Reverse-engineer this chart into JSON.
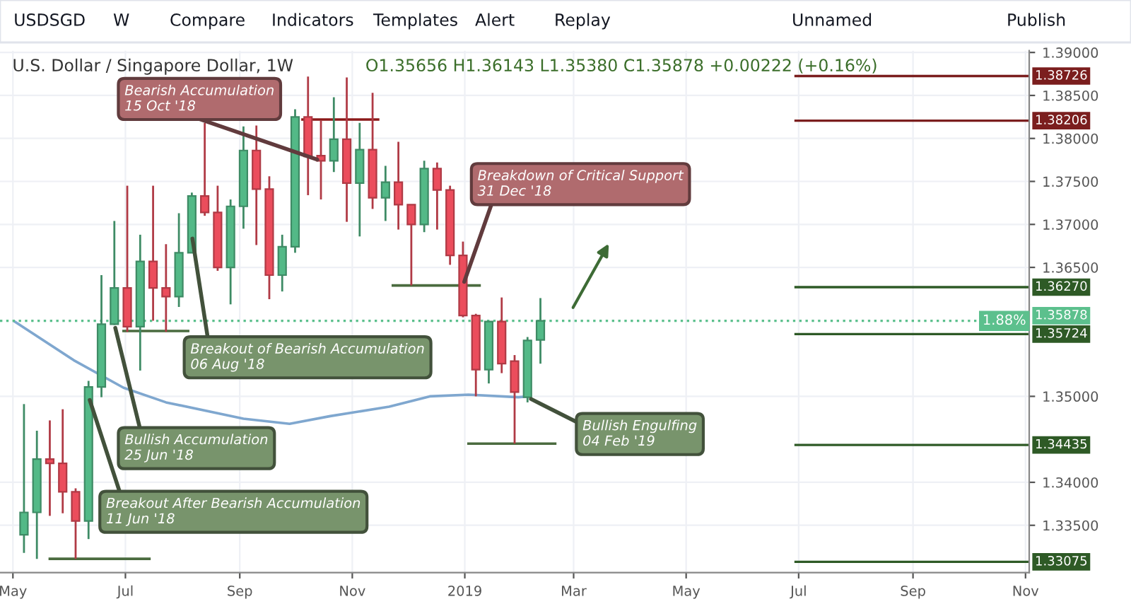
{
  "chart_data": {
    "type": "candlestick",
    "title": "U.S. Dollar / Singapore Dollar, 1W",
    "subtitle": "O1.35656 H1.36143 L1.35380 C1.35878 +0.00222 (+0.16%)",
    "x": [
      "2018-05-07",
      "2018-05-14",
      "2018-05-21",
      "2018-05-28",
      "2018-06-04",
      "2018-06-11",
      "2018-06-18",
      "2018-06-25",
      "2018-07-02",
      "2018-07-09",
      "2018-07-16",
      "2018-07-23",
      "2018-07-30",
      "2018-08-06",
      "2018-08-13",
      "2018-08-20",
      "2018-08-27",
      "2018-09-03",
      "2018-09-10",
      "2018-09-17",
      "2018-09-24",
      "2018-10-01",
      "2018-10-08",
      "2018-10-15",
      "2018-10-22",
      "2018-10-29",
      "2018-11-05",
      "2018-11-12",
      "2018-11-19",
      "2018-11-26",
      "2018-12-03",
      "2018-12-10",
      "2018-12-17",
      "2018-12-24",
      "2018-12-31",
      "2019-01-07",
      "2019-01-14",
      "2019-01-21",
      "2019-01-28",
      "2019-02-04",
      "2019-02-11"
    ],
    "ohlc": [
      [
        1.3339,
        1.3491,
        1.3318,
        1.3365
      ],
      [
        1.3365,
        1.346,
        1.3311,
        1.3427
      ],
      [
        1.3427,
        1.3472,
        1.3361,
        1.3422
      ],
      [
        1.3422,
        1.3485,
        1.3364,
        1.3389
      ],
      [
        1.3389,
        1.3393,
        1.3311,
        1.3355
      ],
      [
        1.3355,
        1.3518,
        1.3334,
        1.3511
      ],
      [
        1.3511,
        1.3641,
        1.3499,
        1.3584
      ],
      [
        1.3584,
        1.3704,
        1.3583,
        1.3626
      ],
      [
        1.3626,
        1.3745,
        1.3575,
        1.3581
      ],
      [
        1.3581,
        1.3688,
        1.353,
        1.3657
      ],
      [
        1.3657,
        1.3745,
        1.3588,
        1.3626
      ],
      [
        1.3626,
        1.3677,
        1.3575,
        1.3616
      ],
      [
        1.3616,
        1.3713,
        1.3604,
        1.3667
      ],
      [
        1.3667,
        1.3737,
        1.3667,
        1.3733
      ],
      [
        1.3733,
        1.3818,
        1.371,
        1.3714
      ],
      [
        1.3714,
        1.3745,
        1.3646,
        1.365
      ],
      [
        1.365,
        1.3729,
        1.3607,
        1.3721
      ],
      [
        1.3721,
        1.3814,
        1.3695,
        1.3786
      ],
      [
        1.3786,
        1.3815,
        1.3676,
        1.3741
      ],
      [
        1.3741,
        1.3756,
        1.3613,
        1.3641
      ],
      [
        1.3641,
        1.3688,
        1.3622,
        1.3674
      ],
      [
        1.3674,
        1.3834,
        1.3667,
        1.3825
      ],
      [
        1.3825,
        1.3872,
        1.3734,
        1.3779
      ],
      [
        1.378,
        1.3821,
        1.3729,
        1.3774
      ],
      [
        1.3774,
        1.3848,
        1.3761,
        1.3799
      ],
      [
        1.3799,
        1.3871,
        1.3703,
        1.3748
      ],
      [
        1.3748,
        1.3818,
        1.3686,
        1.3787
      ],
      [
        1.3787,
        1.3853,
        1.3718,
        1.3731
      ],
      [
        1.3731,
        1.3768,
        1.3704,
        1.3749
      ],
      [
        1.3749,
        1.3796,
        1.3694,
        1.3723
      ],
      [
        1.3723,
        1.3723,
        1.3629,
        1.37
      ],
      [
        1.37,
        1.3774,
        1.3691,
        1.3765
      ],
      [
        1.3765,
        1.3772,
        1.3694,
        1.374
      ],
      [
        1.374,
        1.3745,
        1.3653,
        1.3664
      ],
      [
        1.3664,
        1.368,
        1.3592,
        1.3594
      ],
      [
        1.3594,
        1.3596,
        1.35,
        1.3531
      ],
      [
        1.3531,
        1.3587,
        1.3515,
        1.3587
      ],
      [
        1.3587,
        1.3615,
        1.3527,
        1.3538
      ],
      [
        1.3541,
        1.3548,
        1.3445,
        1.3505
      ],
      [
        1.3499,
        1.3569,
        1.3493,
        1.3565
      ],
      [
        1.35656,
        1.36143,
        1.3538,
        1.35878
      ]
    ],
    "colors": [
      "#53b987",
      "#53b987",
      "#eb4d5c",
      "#eb4d5c",
      "#eb4d5c",
      "#53b987",
      "#53b987",
      "#53b987",
      "#eb4d5c",
      "#53b987",
      "#eb4d5c",
      "#eb4d5c",
      "#53b987",
      "#53b987",
      "#eb4d5c",
      "#eb4d5c",
      "#53b987",
      "#53b987",
      "#eb4d5c",
      "#eb4d5c",
      "#53b987",
      "#53b987",
      "#eb4d5c",
      "#eb4d5c",
      "#53b987",
      "#eb4d5c",
      "#53b987",
      "#eb4d5c",
      "#53b987",
      "#eb4d5c",
      "#eb4d5c",
      "#53b987",
      "#eb4d5c",
      "#eb4d5c",
      "#eb4d5c",
      "#eb4d5c",
      "#53b987",
      "#eb4d5c",
      "#eb4d5c",
      "#53b987",
      "#53b987"
    ],
    "series": [
      {
        "type": "line",
        "color": "#7fa7cf",
        "x": [
          "2018-05-02",
          "2018-06-03",
          "2018-06-30",
          "2018-07-23",
          "2018-09-03",
          "2018-09-28",
          "2018-10-20",
          "2018-11-21",
          "2018-12-13",
          "2019-01-03",
          "2019-01-30",
          "2019-02-05"
        ],
        "values": [
          1.3587,
          1.3542,
          1.351,
          1.3493,
          1.3474,
          1.3468,
          1.3477,
          1.3488,
          1.35,
          1.3502,
          1.3499,
          1.35
        ]
      },
      {
        "type": "line",
        "color": "#4a6b3f",
        "x": [
          "2018-05-21",
          "2018-07-14"
        ],
        "values": [
          1.3311,
          1.3311
        ]
      },
      {
        "type": "line",
        "color": "#4a6b3f",
        "x": [
          "2018-06-30",
          "2018-08-04"
        ],
        "values": [
          1.3576,
          1.3576
        ]
      },
      {
        "type": "line",
        "color": "#8b1a1a",
        "x": [
          "2018-10-05",
          "2018-11-15"
        ],
        "values": [
          1.3822,
          1.3822
        ]
      },
      {
        "type": "line",
        "color": "#4a6b3f",
        "x": [
          "2018-11-23",
          "2019-01-09"
        ],
        "values": [
          1.3629,
          1.3629
        ]
      },
      {
        "type": "line",
        "color": "#4a6b3f",
        "x": [
          "2019-01-03",
          "2019-02-19"
        ],
        "values": [
          1.3445,
          1.3445
        ]
      }
    ],
    "xlim": [
      "2018-04-24",
      "2019-11-03"
    ],
    "xticks": [
      {
        "value": "2018-05-01",
        "label": "May"
      },
      {
        "value": "2018-07-01",
        "label": "Jul"
      },
      {
        "value": "2018-09-01",
        "label": "Sep"
      },
      {
        "value": "2018-11-01",
        "label": "Nov"
      },
      {
        "value": "2019-01-01",
        "label": "2019"
      },
      {
        "value": "2019-03-01",
        "label": "Mar"
      },
      {
        "value": "2019-05-01",
        "label": "May"
      },
      {
        "value": "2019-07-01",
        "label": "Jul"
      },
      {
        "value": "2019-09-01",
        "label": "Sep"
      },
      {
        "value": "2019-11-01",
        "label": "Nov"
      }
    ],
    "ylim": [
      1.3295,
      1.3902
    ],
    "yticks": [
      {
        "value": 1.335,
        "label": "1.33500"
      },
      {
        "value": 1.34,
        "label": "1.34000"
      },
      {
        "value": 1.35,
        "label": "1.35000"
      },
      {
        "value": 1.365,
        "label": "1.36500"
      },
      {
        "value": 1.37,
        "label": "1.37000"
      },
      {
        "value": 1.375,
        "label": "1.37500"
      },
      {
        "value": 1.38,
        "label": "1.38000"
      },
      {
        "value": 1.385,
        "label": "1.38500"
      },
      {
        "value": 1.39,
        "label": "1.39000"
      }
    ],
    "ref_lines": [
      {
        "axis": "y",
        "value": 1.38726,
        "label": "1.38726",
        "color": "#7b1e1e"
      },
      {
        "axis": "y",
        "value": 1.38206,
        "label": "1.38206",
        "color": "#7b1e1e"
      },
      {
        "axis": "y",
        "value": 1.3627,
        "label": "1.36270",
        "color": "#2e5a26"
      },
      {
        "axis": "y",
        "value": 1.35878,
        "label": "1.35878",
        "color": "#5cc08d",
        "line_style": "dotted"
      },
      {
        "axis": "y",
        "value": 1.35724,
        "label": "1.35724",
        "color": "#2e5a26"
      },
      {
        "axis": "y",
        "value": 1.34435,
        "label": "1.34435",
        "color": "#2e5a26"
      },
      {
        "axis": "y",
        "value": 1.33075,
        "label": "1.33075",
        "color": "#2e5a26"
      }
    ],
    "annotations": [
      "USDSGD",
      "W",
      "Compare",
      "Indicators",
      "Templates",
      "Alert",
      "Replay",
      "Unnamed",
      "Publish",
      {
        "text": "1.88%",
        "y": 1.35878
      },
      {
        "text": "Bearish Accumulation\n15 Oct '18",
        "x": "2018-10-15",
        "y": 1.3774
      },
      {
        "text": "Breakout of Bearish Accumulation\n06 Aug '18",
        "x": "2018-08-06",
        "y": 1.3688
      },
      {
        "text": "Bullish Accumulation\n25 Jun '18",
        "x": "2018-06-25",
        "y": 1.3584
      },
      {
        "text": "Breakout After Bearish Accumulation\n11 Jun '18",
        "x": "2018-06-11",
        "y": 1.35
      },
      {
        "text": "Breakdown of Critical Support\n31 Dec '18",
        "x": "2018-12-31",
        "y": 1.3629
      },
      {
        "text": "Bullish Engulfing\n04 Feb '19",
        "x": "2019-02-04",
        "y": 1.3499
      }
    ],
    "grid": true
  }
}
